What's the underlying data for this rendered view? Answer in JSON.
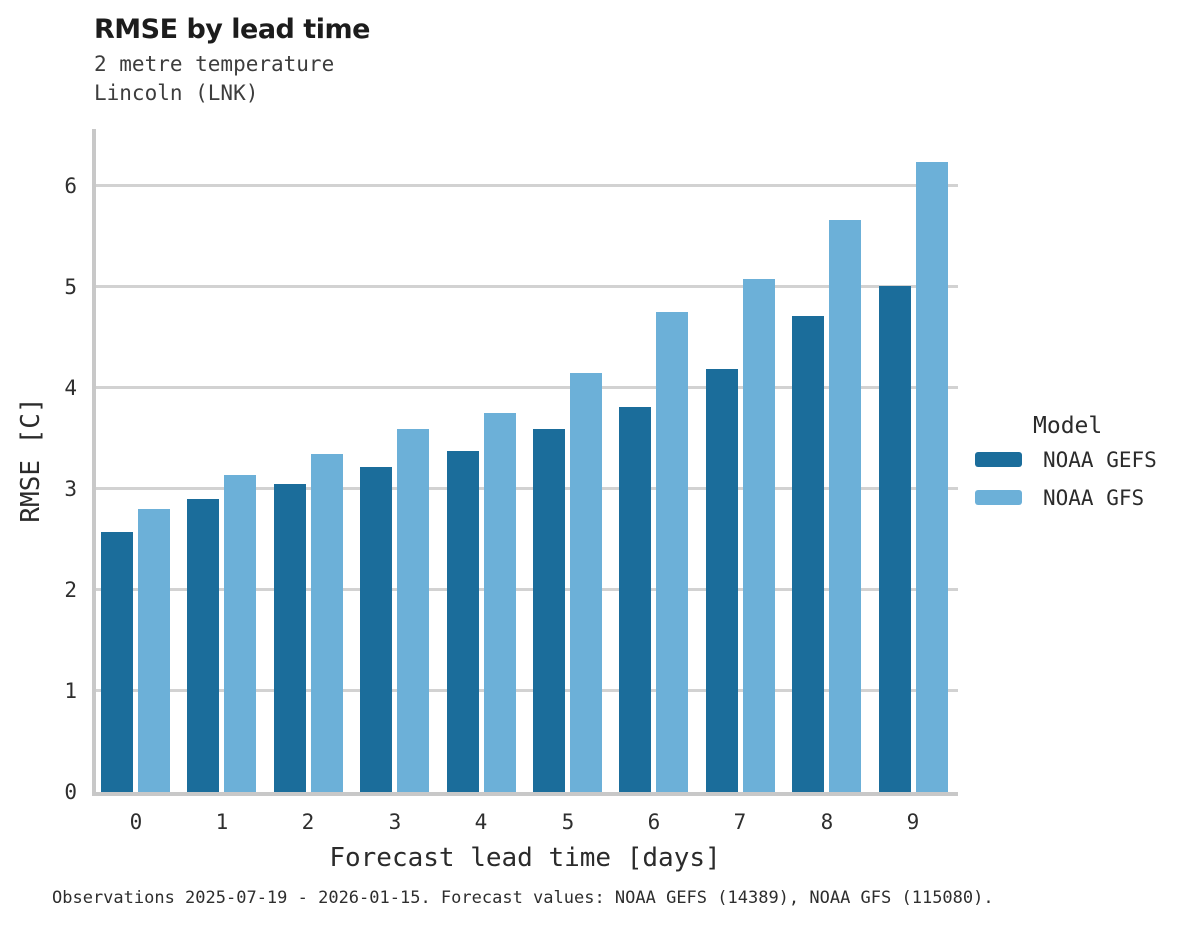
{
  "header": {
    "title": "RMSE by lead time",
    "subtitle_line1": "2 metre temperature",
    "subtitle_line2": "Lincoln (LNK)"
  },
  "chart_data": {
    "type": "bar",
    "title": "RMSE by lead time",
    "subtitle_lines": [
      "2 metre temperature",
      "Lincoln (LNK)"
    ],
    "xlabel": "Forecast lead time [days]",
    "ylabel": "RMSE [C]",
    "categories": [
      "0",
      "1",
      "2",
      "3",
      "4",
      "5",
      "6",
      "7",
      "8",
      "9"
    ],
    "series": [
      {
        "name": "NOAA GEFS",
        "color": "#1b6d9b",
        "values": [
          2.57,
          2.9,
          3.05,
          3.22,
          3.37,
          3.59,
          3.81,
          4.19,
          4.71,
          5.01
        ]
      },
      {
        "name": "NOAA GFS",
        "color": "#6cb0d8",
        "values": [
          2.8,
          3.14,
          3.34,
          3.59,
          3.75,
          4.15,
          4.75,
          5.08,
          5.66,
          6.23
        ]
      }
    ],
    "ylim": [
      0,
      6.56
    ],
    "yticks": [
      0,
      1,
      2,
      3,
      4,
      5,
      6
    ],
    "grid": "horizontal",
    "legend_title": "Model",
    "legend_position": "right",
    "colors": {
      "grid": "#d2d2d2",
      "axis": "#c8c8c8"
    }
  },
  "footer": {
    "caption": "Observations 2025-07-19 - 2026-01-15. Forecast values: NOAA GEFS (14389), NOAA GFS (115080)."
  }
}
